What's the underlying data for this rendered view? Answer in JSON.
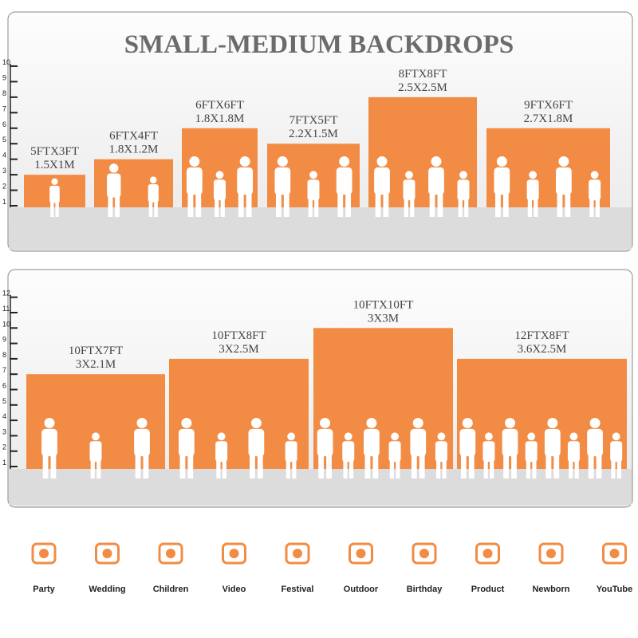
{
  "title": "SMALL-MEDIUM BACKDROPS",
  "panels": [
    {
      "ruler_ticks": [
        1,
        2,
        3,
        4,
        5,
        6,
        7,
        8,
        9,
        10
      ],
      "items": [
        {
          "size_ft": "5FTX3FT",
          "size_m": "1.5X1M",
          "height_ft": 3
        },
        {
          "size_ft": "6FTX4FT",
          "size_m": "1.8X1.2M",
          "height_ft": 4
        },
        {
          "size_ft": "6FTX6FT",
          "size_m": "1.8X1.8M",
          "height_ft": 6
        },
        {
          "size_ft": "7FTX5FT",
          "size_m": "2.2X1.5M",
          "height_ft": 5
        },
        {
          "size_ft": "8FTX8FT",
          "size_m": "2.5X2.5M",
          "height_ft": 8
        },
        {
          "size_ft": "9FTX6FT",
          "size_m": "2.7X1.8M",
          "height_ft": 6
        }
      ]
    },
    {
      "ruler_ticks": [
        1,
        2,
        3,
        4,
        5,
        6,
        7,
        8,
        9,
        10,
        11,
        12
      ],
      "items": [
        {
          "size_ft": "10FTX7FT",
          "size_m": "3X2.1M",
          "height_ft": 7
        },
        {
          "size_ft": "10FTX8FT",
          "size_m": "3X2.5M",
          "height_ft": 8
        },
        {
          "size_ft": "10FTX10FT",
          "size_m": "3X3M",
          "height_ft": 10
        },
        {
          "size_ft": "12FTX8FT",
          "size_m": "3.6X2.5M",
          "height_ft": 8
        }
      ]
    }
  ],
  "uses": [
    "Party",
    "Wedding",
    "Children",
    "Video",
    "Festival",
    "Outdoor",
    "Birthday",
    "Product",
    "Newborn",
    "YouTube"
  ]
}
